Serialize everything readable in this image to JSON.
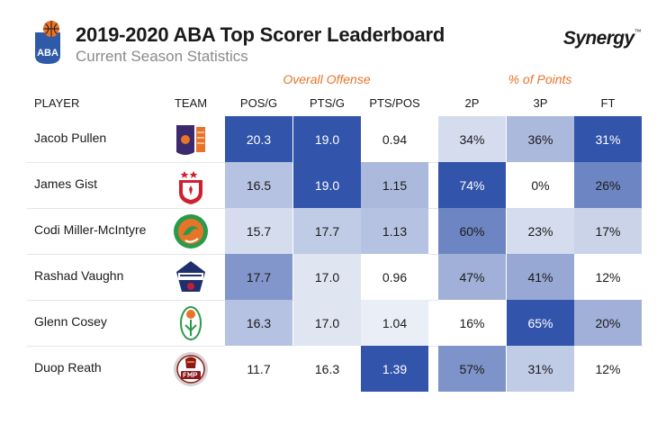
{
  "header": {
    "league_logo_text": "ABA",
    "title": "2019-2020 ABA Top Scorer Leaderboard",
    "subtitle": "Current Season Statistics",
    "brand": "Synergy",
    "brand_mark": "™"
  },
  "chart_data": {
    "type": "table",
    "title": "2019-2020 ABA Top Scorer Leaderboard",
    "subtitle": "Current Season Statistics",
    "column_groups": [
      {
        "label": "Overall Offense",
        "columns": [
          "POS/G",
          "PTS/G",
          "PTS/POS"
        ]
      },
      {
        "label": "% of Points",
        "columns": [
          "2P",
          "3P",
          "FT"
        ]
      }
    ],
    "headers": {
      "player": "PLAYER",
      "team": "TEAM"
    },
    "columns": [
      "POS/G",
      "PTS/G",
      "PTS/POS",
      "2P",
      "3P",
      "FT"
    ],
    "rows": [
      {
        "player": "Jacob Pullen",
        "team_logo": "mornar-bar-logo",
        "values": [
          "20.3",
          "19.0",
          "0.94",
          "34%",
          "36%",
          "31%"
        ],
        "intensity": [
          0.98,
          0.98,
          0.0,
          0.2,
          0.4,
          0.98
        ]
      },
      {
        "player": "James Gist",
        "team_logo": "crvena-zvezda-logo",
        "values": [
          "16.5",
          "19.0",
          "1.15",
          "74%",
          "0%",
          "26%"
        ],
        "intensity": [
          0.35,
          0.98,
          0.4,
          0.98,
          0.0,
          0.7
        ]
      },
      {
        "player": "Codi Miller-McIntyre",
        "team_logo": "cedevita-olimpija-logo",
        "values": [
          "15.7",
          "17.7",
          "1.13",
          "60%",
          "23%",
          "17%"
        ],
        "intensity": [
          0.2,
          0.3,
          0.35,
          0.7,
          0.2,
          0.25
        ]
      },
      {
        "player": "Rashad Vaughn",
        "team_logo": "igokea-logo",
        "values": [
          "17.7",
          "17.0",
          "0.96",
          "47%",
          "41%",
          "12%"
        ],
        "intensity": [
          0.6,
          0.15,
          0.0,
          0.45,
          0.5,
          0.0
        ]
      },
      {
        "player": "Glenn Cosey",
        "team_logo": "krka-logo",
        "values": [
          "16.3",
          "17.0",
          "1.04",
          "16%",
          "65%",
          "20%"
        ],
        "intensity": [
          0.35,
          0.15,
          0.1,
          0.0,
          0.98,
          0.45
        ]
      },
      {
        "player": "Duop Reath",
        "team_logo": "fmp-logo",
        "values": [
          "11.7",
          "16.3",
          "1.39",
          "57%",
          "31%",
          "12%"
        ],
        "intensity": [
          0.0,
          0.0,
          0.98,
          0.62,
          0.3,
          0.0
        ]
      }
    ],
    "color_scale": {
      "low": "#ffffff",
      "high": "#2e50a8"
    },
    "dark_text_color": "#1a1a1a",
    "light_text_color": "#ffffff"
  },
  "colors": {
    "accent": "#e8742a",
    "heat_high": "#2e50a8"
  }
}
